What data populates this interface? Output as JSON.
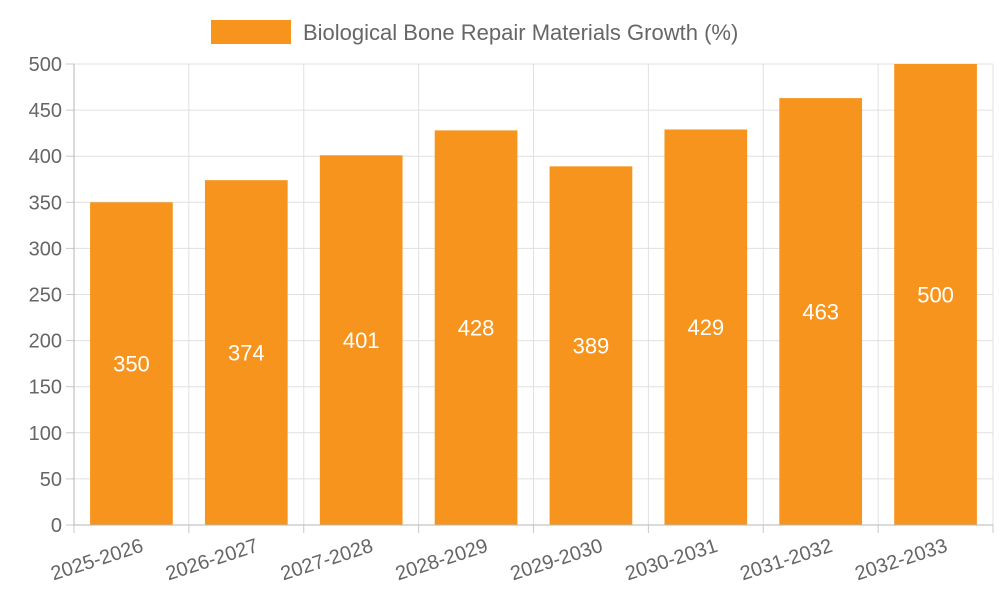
{
  "chart_data": {
    "type": "bar",
    "categories": [
      "2025-2026",
      "2026-2027",
      "2027-2028",
      "2028-2029",
      "2029-2030",
      "2030-2031",
      "2031-2032",
      "2032-2033"
    ],
    "series": [
      {
        "name": "Biological Bone Repair Materials Growth (%)",
        "values": [
          350,
          374,
          401,
          428,
          389,
          429,
          463,
          500
        ],
        "color": "#f7941d"
      }
    ],
    "ylim": [
      0,
      500
    ],
    "yticks": [
      "0",
      "50",
      "100",
      "150",
      "200",
      "250",
      "300",
      "350",
      "400",
      "450",
      "500"
    ],
    "grid": true,
    "legend": "top-center",
    "title": "",
    "xlabel": "",
    "ylabel": ""
  }
}
